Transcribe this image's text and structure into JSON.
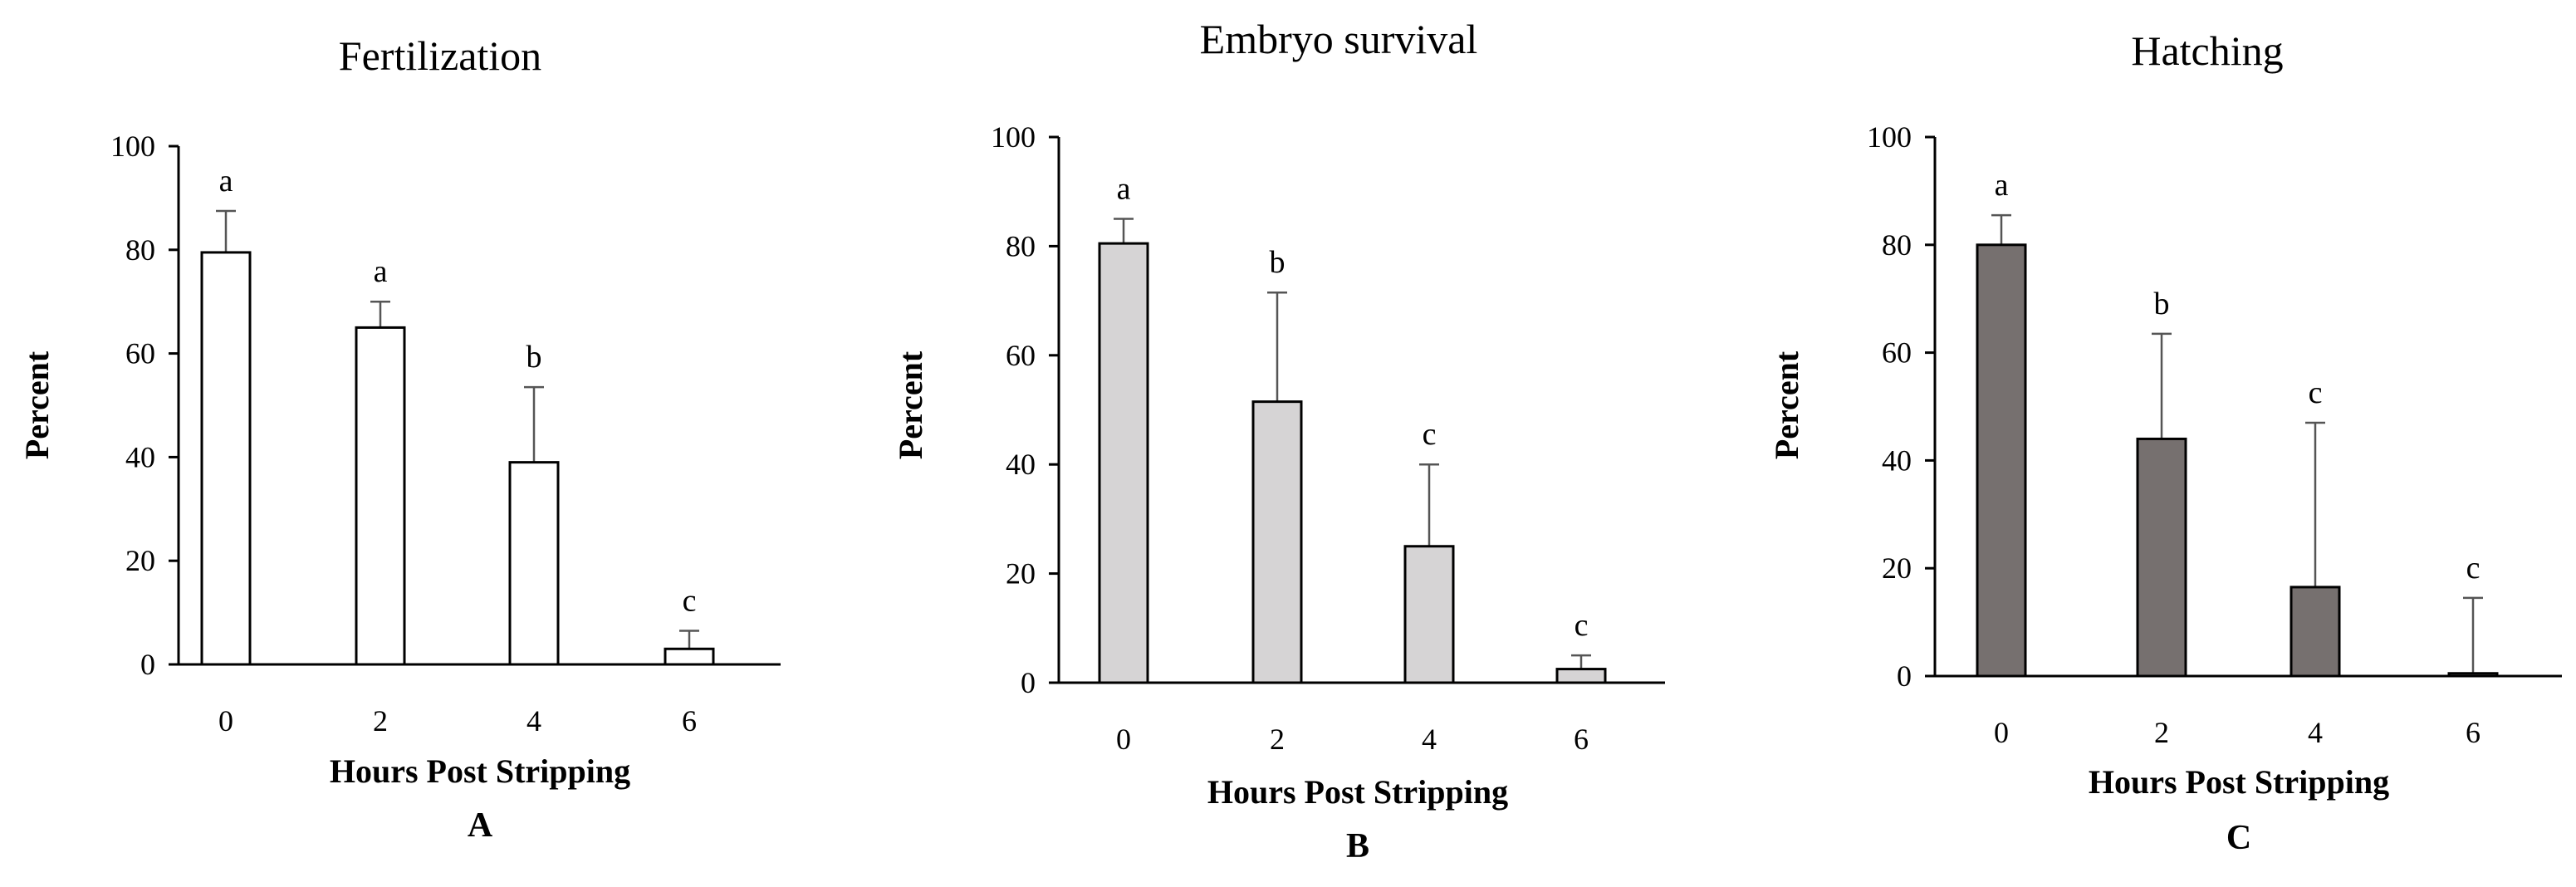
{
  "chart_data": [
    {
      "type": "bar",
      "panel_label": "A",
      "title": "Fertilization",
      "xlabel": "Hours Post Stripping",
      "ylabel": "Percent",
      "categories": [
        "0",
        "2",
        "4",
        "6"
      ],
      "ylim": [
        0,
        100
      ],
      "yticks": [
        0,
        20,
        40,
        60,
        80,
        100
      ],
      "grid": false,
      "bar_color": "#ffffff",
      "series": [
        {
          "values": [
            79.5,
            65,
            39,
            3
          ],
          "error_upper": [
            8,
            5,
            14.5,
            3.5
          ],
          "significance": [
            "a",
            "a",
            "b",
            "c"
          ]
        }
      ]
    },
    {
      "type": "bar",
      "panel_label": "B",
      "title": "Embryo survival",
      "xlabel": "Hours Post Stripping",
      "ylabel": "Percent",
      "categories": [
        "0",
        "2",
        "4",
        "6"
      ],
      "ylim": [
        0,
        100
      ],
      "yticks": [
        0,
        20,
        40,
        60,
        80,
        100
      ],
      "grid": false,
      "bar_color": "#d6d4d5",
      "series": [
        {
          "values": [
            80.5,
            51.5,
            25,
            2.5
          ],
          "error_upper": [
            4.5,
            20,
            15,
            2.5
          ],
          "significance": [
            "a",
            "b",
            "c",
            "c"
          ]
        }
      ]
    },
    {
      "type": "bar",
      "panel_label": "C",
      "title": "Hatching",
      "xlabel": "Hours Post Stripping",
      "ylabel": "Percent",
      "categories": [
        "0",
        "2",
        "4",
        "6"
      ],
      "ylim": [
        0,
        100
      ],
      "yticks": [
        0,
        20,
        40,
        60,
        80,
        100
      ],
      "grid": false,
      "bar_color": "#76706f",
      "series": [
        {
          "values": [
            80,
            44,
            16.5,
            0.5
          ],
          "error_upper": [
            5.5,
            19.5,
            30.5,
            14
          ],
          "significance": [
            "a",
            "b",
            "c",
            "c"
          ]
        }
      ]
    }
  ]
}
